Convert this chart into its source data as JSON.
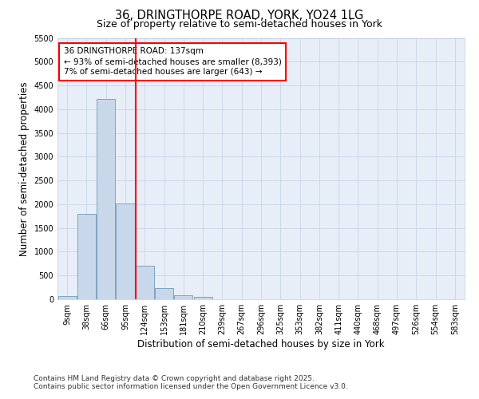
{
  "title_line1": "36, DRINGTHORPE ROAD, YORK, YO24 1LG",
  "title_line2": "Size of property relative to semi-detached houses in York",
  "xlabel": "Distribution of semi-detached houses by size in York",
  "ylabel": "Number of semi-detached properties",
  "bins": [
    "9sqm",
    "38sqm",
    "66sqm",
    "95sqm",
    "124sqm",
    "153sqm",
    "181sqm",
    "210sqm",
    "239sqm",
    "267sqm",
    "296sqm",
    "325sqm",
    "353sqm",
    "382sqm",
    "411sqm",
    "440sqm",
    "468sqm",
    "497sqm",
    "526sqm",
    "554sqm",
    "583sqm"
  ],
  "values": [
    60,
    1800,
    4220,
    2020,
    700,
    240,
    90,
    50,
    0,
    0,
    0,
    0,
    0,
    0,
    0,
    0,
    0,
    0,
    0,
    0,
    0
  ],
  "bar_color": "#c8d8ea",
  "bar_edge_color": "#7099bb",
  "vline_x_index": 4,
  "vline_color": "red",
  "annotation_title": "36 DRINGTHORPE ROAD: 137sqm",
  "annotation_line1": "← 93% of semi-detached houses are smaller (8,393)",
  "annotation_line2": "7% of semi-detached houses are larger (643) →",
  "annotation_box_color": "red",
  "ylim": [
    0,
    5500
  ],
  "yticks": [
    0,
    500,
    1000,
    1500,
    2000,
    2500,
    3000,
    3500,
    4000,
    4500,
    5000,
    5500
  ],
  "grid_color": "#c8d4e4",
  "background_color": "#e8eef8",
  "footer_line1": "Contains HM Land Registry data © Crown copyright and database right 2025.",
  "footer_line2": "Contains public sector information licensed under the Open Government Licence v3.0.",
  "title_fontsize": 10.5,
  "subtitle_fontsize": 9,
  "axis_label_fontsize": 8.5,
  "tick_fontsize": 7,
  "annotation_fontsize": 7.5,
  "footer_fontsize": 6.5
}
